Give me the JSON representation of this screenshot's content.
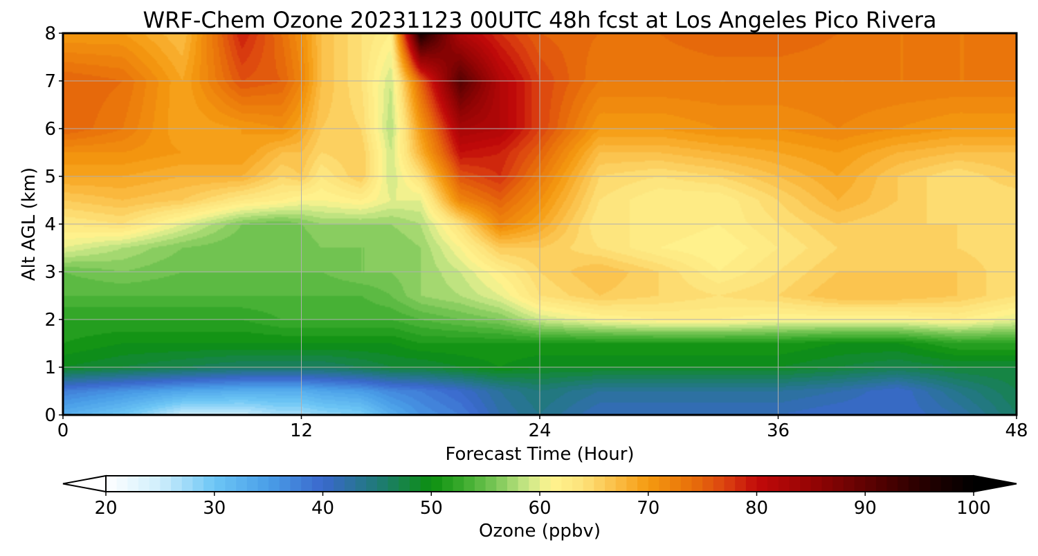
{
  "chart_data": {
    "type": "heatmap",
    "title": "WRF-Chem Ozone  20231123 00UTC 48h fcst at Los Angeles Pico Rivera",
    "xlabel": "Forecast Time (Hour)",
    "ylabel": "Alt AGL (km)",
    "x_ticks": [
      0,
      12,
      24,
      36,
      48
    ],
    "y_ticks": [
      0,
      1,
      2,
      3,
      4,
      5,
      6,
      7,
      8
    ],
    "xlim": [
      0,
      48
    ],
    "ylim": [
      0,
      8
    ],
    "grid": true,
    "colorbar": {
      "label": "Ozone  (ppbv)",
      "ticks": [
        20,
        30,
        40,
        50,
        60,
        70,
        80,
        90,
        100
      ],
      "range": [
        20,
        100
      ],
      "extend": "both",
      "orientation": "horizontal",
      "placement": "bottom",
      "color_stops": [
        [
          20,
          "#ffffff"
        ],
        [
          25,
          "#cfeefc"
        ],
        [
          30,
          "#6cc6f5"
        ],
        [
          35,
          "#4a9ee8"
        ],
        [
          40,
          "#3a68cc"
        ],
        [
          45,
          "#1f7a78"
        ],
        [
          50,
          "#0c8f10"
        ],
        [
          53,
          "#3cac2e"
        ],
        [
          56,
          "#7cc858"
        ],
        [
          59,
          "#cce888"
        ],
        [
          61,
          "#fff490"
        ],
        [
          64,
          "#fde27a"
        ],
        [
          67,
          "#fbbe46"
        ],
        [
          70,
          "#f59a10"
        ],
        [
          74,
          "#e8700a"
        ],
        [
          77,
          "#dc4410"
        ],
        [
          80,
          "#c20a0a"
        ],
        [
          85,
          "#960404"
        ],
        [
          90,
          "#600202"
        ],
        [
          95,
          "#2a0000"
        ],
        [
          100,
          "#000000"
        ]
      ]
    },
    "approx_grid": {
      "hours": [
        0,
        3,
        6,
        9,
        11,
        12,
        13,
        15,
        16.5,
        18,
        20,
        22,
        24,
        27,
        30,
        33,
        36,
        39,
        42,
        45,
        48
      ],
      "altitudes_km": [
        0,
        0.5,
        1,
        1.5,
        2,
        2.5,
        3,
        3.5,
        4,
        4.5,
        5,
        5.5,
        6,
        7,
        8
      ],
      "ozone_ppbv": [
        [
          33,
          30,
          25,
          25,
          27,
          27,
          28,
          29,
          33,
          36,
          38,
          42,
          44,
          41,
          41,
          41,
          41,
          40,
          40,
          42,
          46
        ],
        [
          38,
          36,
          34,
          33,
          33,
          33,
          34,
          35,
          37,
          38,
          40,
          43,
          45,
          43,
          43,
          43,
          43,
          42,
          40,
          44,
          47
        ],
        [
          49,
          48,
          47,
          46,
          46,
          46,
          46,
          47,
          48,
          48,
          49,
          50,
          49,
          49,
          49,
          49,
          49,
          48,
          47,
          48,
          48
        ],
        [
          51,
          50,
          50,
          50,
          50,
          50,
          50,
          50,
          50,
          51,
          51,
          51,
          51,
          51,
          51,
          51,
          51,
          50,
          50,
          52,
          52
        ],
        [
          52,
          52,
          52,
          52,
          53,
          53,
          53,
          53,
          53,
          54,
          55,
          56,
          59,
          61,
          62,
          62,
          61,
          61,
          61,
          62,
          60
        ],
        [
          54,
          54,
          54,
          54,
          54,
          54,
          54,
          54,
          55,
          57,
          58,
          60,
          64,
          66,
          65,
          64,
          65,
          67,
          67,
          66,
          64
        ],
        [
          55,
          56,
          55,
          55,
          55,
          55,
          55,
          56,
          56,
          57,
          59,
          62,
          65,
          67,
          65,
          62,
          64,
          66,
          66,
          66,
          64
        ],
        [
          60,
          58,
          56,
          55,
          55,
          55,
          56,
          56,
          56,
          57,
          61,
          66,
          66,
          64,
          62,
          61,
          63,
          65,
          65,
          65,
          64
        ],
        [
          63,
          64,
          60,
          56,
          55,
          56,
          57,
          57,
          57,
          58,
          64,
          72,
          69,
          63,
          63,
          62,
          64,
          66,
          65,
          65,
          65
        ],
        [
          66,
          67,
          66,
          63,
          62,
          61,
          61,
          62,
          60,
          60,
          72,
          75,
          71,
          64,
          62,
          62,
          65,
          68,
          66,
          64,
          64
        ],
        [
          69,
          69,
          68,
          68,
          65,
          66,
          63,
          66,
          59,
          64,
          76,
          78,
          73,
          65,
          64,
          65,
          67,
          69,
          66,
          64,
          66
        ],
        [
          71,
          71,
          70,
          70,
          67,
          67,
          65,
          66,
          59,
          68,
          80,
          79,
          75,
          67,
          67,
          68,
          69,
          70,
          68,
          67,
          67
        ],
        [
          75,
          73,
          69,
          70,
          71,
          69,
          66,
          65,
          58,
          70,
          83,
          82,
          77,
          70,
          70,
          71,
          71,
          72,
          71,
          70,
          70
        ],
        [
          75,
          74,
          69,
          76,
          75,
          72,
          67,
          64,
          59,
          75,
          91,
          82,
          77,
          73,
          73,
          73,
          73,
          73,
          73,
          73,
          73
        ],
        [
          70,
          70,
          67,
          79,
          74,
          71,
          67,
          64,
          62,
          97,
          82,
          78,
          75,
          74,
          74,
          75,
          75,
          74,
          73,
          73,
          73
        ]
      ]
    }
  }
}
